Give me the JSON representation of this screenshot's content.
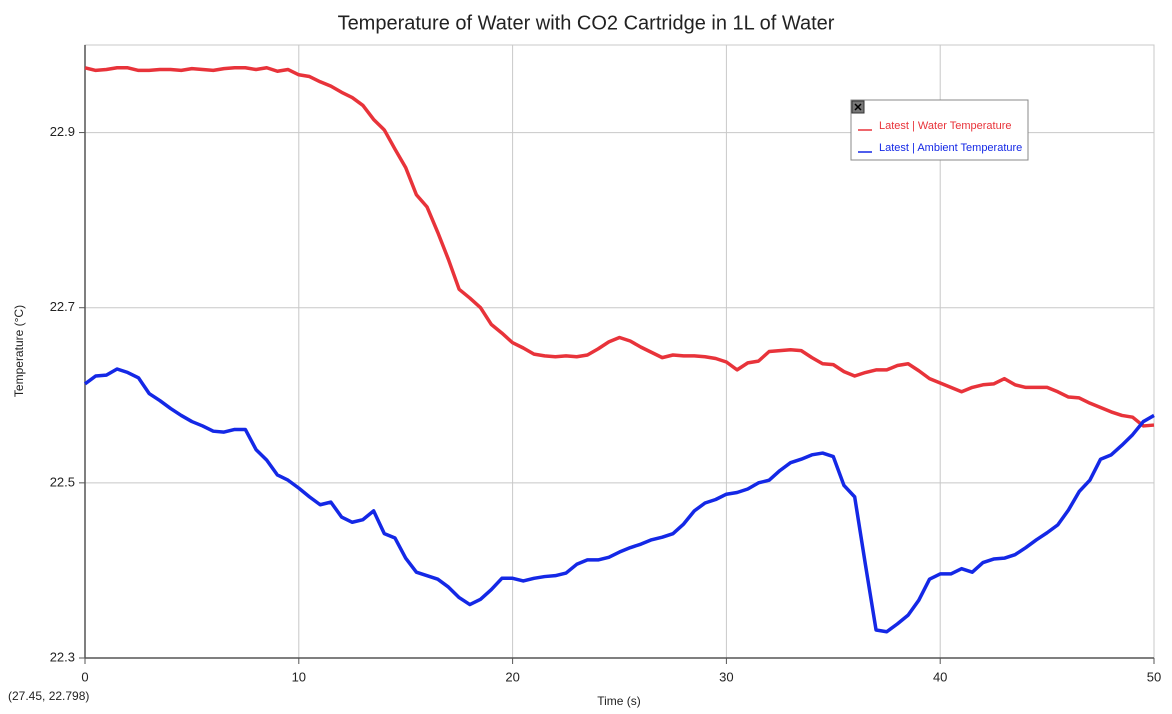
{
  "chart_data": {
    "type": "line",
    "title": "Temperature of Water with CO2 Cartridge in 1L of Water",
    "x_label": "Time (s)",
    "y_label": "Temperature (°C)",
    "cursor_readout": "(27.45, 22.798)",
    "x": [
      0,
      0.5,
      1,
      1.5,
      2,
      2.5,
      3,
      3.5,
      4,
      4.5,
      5,
      5.5,
      6,
      6.5,
      7,
      7.5,
      8,
      8.5,
      9,
      9.5,
      10,
      10.5,
      11,
      11.5,
      12,
      12.5,
      13,
      13.5,
      14,
      14.5,
      15,
      15.5,
      16,
      16.5,
      17,
      17.5,
      18,
      18.5,
      19,
      19.5,
      20,
      20.5,
      21,
      21.5,
      22,
      22.5,
      23,
      23.5,
      24,
      24.5,
      25,
      25.5,
      26,
      26.5,
      27,
      27.5,
      28,
      28.5,
      29,
      29.5,
      30,
      30.5,
      31,
      31.5,
      32,
      32.5,
      33,
      33.5,
      34,
      34.5,
      35,
      35.5,
      36,
      36.5,
      37,
      37.5,
      38,
      38.5,
      39,
      39.5,
      40,
      40.5,
      41,
      41.5,
      42,
      42.5,
      43,
      43.5,
      44,
      44.5,
      45,
      45.5,
      46,
      46.5,
      47,
      47.5,
      48,
      48.5,
      49,
      49.5,
      50
    ],
    "series": [
      {
        "name": "Latest | Water Temperature",
        "color": "#e8333a",
        "values": [
          22.974,
          22.971,
          22.972,
          22.974,
          22.974,
          22.971,
          22.971,
          22.972,
          22.972,
          22.971,
          22.973,
          22.972,
          22.971,
          22.973,
          22.974,
          22.974,
          22.972,
          22.974,
          22.97,
          22.972,
          22.966,
          22.964,
          22.958,
          22.953,
          22.946,
          22.94,
          22.931,
          22.915,
          22.903,
          22.881,
          22.86,
          22.829,
          22.815,
          22.786,
          22.755,
          22.721,
          22.711,
          22.7,
          22.681,
          22.671,
          22.66,
          22.654,
          22.647,
          22.645,
          22.644,
          22.645,
          22.644,
          22.646,
          22.653,
          22.661,
          22.666,
          22.662,
          22.655,
          22.649,
          22.643,
          22.646,
          22.645,
          22.645,
          22.644,
          22.642,
          22.638,
          22.629,
          22.637,
          22.639,
          22.65,
          22.651,
          22.652,
          22.651,
          22.643,
          22.636,
          22.635,
          22.627,
          22.622,
          22.626,
          22.629,
          22.629,
          22.634,
          22.636,
          22.628,
          22.619,
          22.614,
          22.609,
          22.604,
          22.609,
          22.612,
          22.613,
          22.619,
          22.612,
          22.609,
          22.609,
          22.609,
          22.604,
          22.598,
          22.597,
          22.591,
          22.586,
          22.581,
          22.577,
          22.575,
          22.565,
          22.566
        ]
      },
      {
        "name": "Latest | Ambient Temperature",
        "color": "#1428e6",
        "values": [
          22.613,
          22.622,
          22.623,
          22.63,
          22.626,
          22.62,
          22.602,
          22.594,
          22.585,
          22.577,
          22.57,
          22.565,
          22.559,
          22.558,
          22.561,
          22.561,
          22.538,
          22.526,
          22.509,
          22.503,
          22.494,
          22.484,
          22.475,
          22.478,
          22.461,
          22.455,
          22.458,
          22.468,
          22.442,
          22.437,
          22.414,
          22.398,
          22.394,
          22.39,
          22.381,
          22.369,
          22.361,
          22.367,
          22.378,
          22.391,
          22.391,
          22.388,
          22.391,
          22.393,
          22.394,
          22.397,
          22.407,
          22.412,
          22.412,
          22.415,
          22.421,
          22.426,
          22.43,
          22.435,
          22.438,
          22.442,
          22.453,
          22.468,
          22.477,
          22.481,
          22.487,
          22.489,
          22.493,
          22.5,
          22.503,
          22.514,
          22.523,
          22.527,
          22.532,
          22.534,
          22.53,
          22.497,
          22.484,
          22.407,
          22.332,
          22.33,
          22.339,
          22.349,
          22.366,
          22.39,
          22.396,
          22.396,
          22.402,
          22.398,
          22.409,
          22.413,
          22.414,
          22.418,
          22.426,
          22.435,
          22.443,
          22.452,
          22.469,
          22.49,
          22.503,
          22.527,
          22.532,
          22.543,
          22.555,
          22.57,
          22.577
        ]
      }
    ],
    "xlim": [
      0,
      50
    ],
    "xticks": [
      0,
      10,
      20,
      30,
      40,
      50
    ],
    "ylim": [
      22.3,
      23.0
    ],
    "yticks": [
      22.3,
      22.5,
      22.7,
      22.9
    ],
    "grid": true,
    "legend_position": "upper right"
  }
}
